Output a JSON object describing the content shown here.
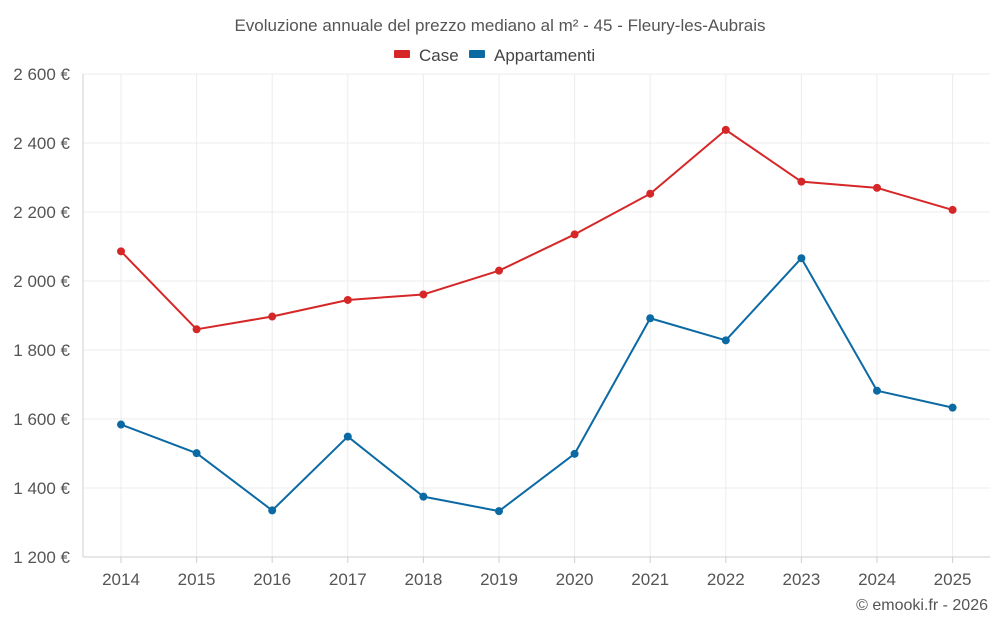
{
  "chart_data": {
    "type": "line",
    "title": "Evoluzione annuale del prezzo mediano al m² - 45 - Fleury-les-Aubrais",
    "xlabel": "",
    "ylabel": "",
    "categories": [
      "2014",
      "2015",
      "2016",
      "2017",
      "2018",
      "2019",
      "2020",
      "2021",
      "2022",
      "2023",
      "2024",
      "2025"
    ],
    "ylim": [
      1200,
      2600
    ],
    "yticks": [
      1200,
      1400,
      1600,
      1800,
      2000,
      2200,
      2400,
      2600
    ],
    "ytick_labels": [
      "1 200 €",
      "1 400 €",
      "1 600 €",
      "1 800 €",
      "2 000 €",
      "2 200 €",
      "2 400 €",
      "2 600 €"
    ],
    "grid": true,
    "legend_position": "top-center",
    "series": [
      {
        "name": "Case",
        "color": "#d62728",
        "values": [
          2086,
          1860,
          1897,
          1945,
          1961,
          2030,
          2135,
          2253,
          2438,
          2288,
          2270,
          2206
        ]
      },
      {
        "name": "Appartamenti",
        "color": "#0b69a3",
        "values": [
          1584,
          1501,
          1335,
          1549,
          1375,
          1333,
          1499,
          1892,
          1828,
          2066,
          1682,
          1633
        ]
      }
    ],
    "credit": "© emooki.fr - 2026"
  }
}
